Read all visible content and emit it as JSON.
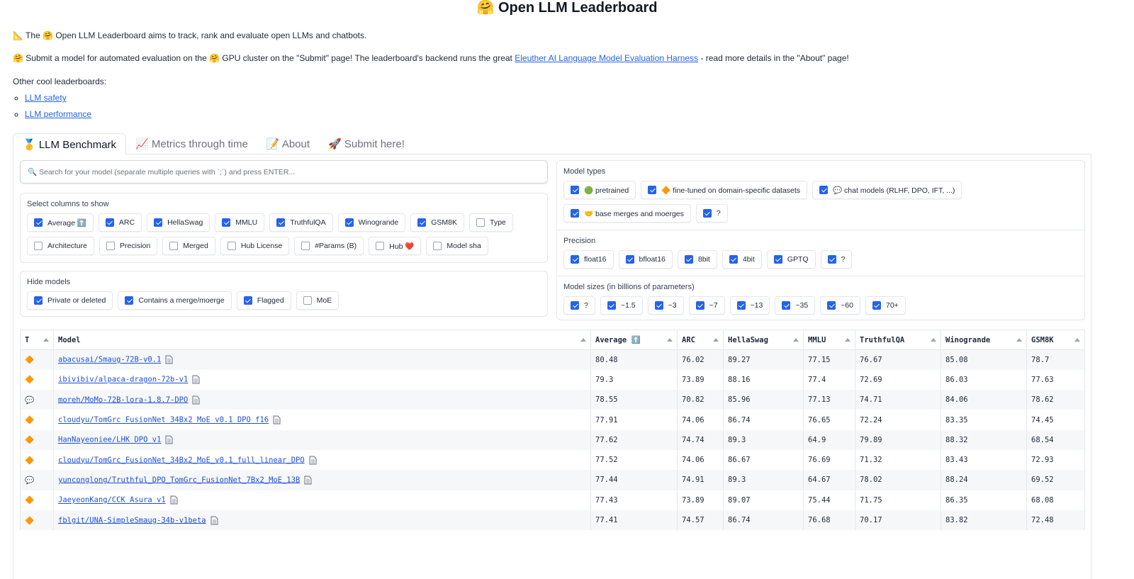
{
  "header": {
    "title": "🤗 Open LLM Leaderboard"
  },
  "intro": {
    "line1": "📐 The 🤗 Open LLM Leaderboard aims to track, rank and evaluate open LLMs and chatbots.",
    "line2": {
      "before": "🤗 Submit a model for automated evaluation on the 🤗 GPU cluster on the \"Submit\" page! The leaderboard's backend runs the great ",
      "link": "Eleuther AI Language Model Evaluation Harness",
      "after": " - read more details in the \"About\" page!"
    },
    "others_label": "Other cool leaderboards:",
    "others": [
      "LLM safety",
      "LLM performance"
    ]
  },
  "tabs": [
    {
      "label": "🥇 LLM Benchmark",
      "selected": true
    },
    {
      "label": "📈 Metrics through time",
      "selected": false
    },
    {
      "label": "📝 About",
      "selected": false
    },
    {
      "label": "🚀 Submit here!",
      "selected": false
    }
  ],
  "search": {
    "placeholder": "🔍 Search for your model (separate multiple queries with `;`) and press ENTER..."
  },
  "columns": {
    "label": "Select columns to show",
    "options": [
      {
        "label": "Average ⬆️",
        "checked": true
      },
      {
        "label": "ARC",
        "checked": true
      },
      {
        "label": "HellaSwag",
        "checked": true
      },
      {
        "label": "MMLU",
        "checked": true
      },
      {
        "label": "TruthfulQA",
        "checked": true
      },
      {
        "label": "Winogrande",
        "checked": true
      },
      {
        "label": "GSM8K",
        "checked": true
      },
      {
        "label": "Type",
        "checked": false
      },
      {
        "label": "Architecture",
        "checked": false
      },
      {
        "label": "Precision",
        "checked": false
      },
      {
        "label": "Merged",
        "checked": false
      },
      {
        "label": "Hub License",
        "checked": false
      },
      {
        "label": "#Params (B)",
        "checked": false
      },
      {
        "label": "Hub ❤️",
        "checked": false
      },
      {
        "label": "Model sha",
        "checked": false
      }
    ]
  },
  "hide_models": {
    "label": "Hide models",
    "options": [
      {
        "label": "Private or deleted",
        "checked": true
      },
      {
        "label": "Contains a merge/moerge",
        "checked": true
      },
      {
        "label": "Flagged",
        "checked": true
      },
      {
        "label": "MoE",
        "checked": false
      }
    ]
  },
  "model_types": {
    "label": "Model types",
    "options": [
      {
        "label": "🟢 pretrained",
        "checked": true
      },
      {
        "label": "🔶 fine-tuned on domain-specific datasets",
        "checked": true
      },
      {
        "label": "💬 chat models (RLHF, DPO, IFT, ...)",
        "checked": true
      },
      {
        "label": "🤝 base merges and moerges",
        "checked": true
      },
      {
        "label": "?",
        "checked": true
      }
    ]
  },
  "precision": {
    "label": "Precision",
    "options": [
      {
        "label": "float16",
        "checked": true
      },
      {
        "label": "bfloat16",
        "checked": true
      },
      {
        "label": "8bit",
        "checked": true
      },
      {
        "label": "4bit",
        "checked": true
      },
      {
        "label": "GPTQ",
        "checked": true
      },
      {
        "label": "?",
        "checked": true
      }
    ]
  },
  "model_sizes": {
    "label": "Model sizes (in billions of parameters)",
    "options": [
      {
        "label": "?",
        "checked": true
      },
      {
        "label": "~1.5",
        "checked": true
      },
      {
        "label": "~3",
        "checked": true
      },
      {
        "label": "~7",
        "checked": true
      },
      {
        "label": "~13",
        "checked": true
      },
      {
        "label": "~35",
        "checked": true
      },
      {
        "label": "~60",
        "checked": true
      },
      {
        "label": "70+",
        "checked": true
      }
    ]
  },
  "table": {
    "headers": [
      "T",
      "Model",
      "Average ⬆️",
      "ARC",
      "HellaSwag",
      "MMLU",
      "TruthfulQA",
      "Winogrande",
      "GSM8K"
    ],
    "rows": [
      [
        "🔶",
        "abacusai/Smaug-72B-v0.1",
        80.48,
        76.02,
        89.27,
        77.15,
        76.67,
        85.08,
        78.7
      ],
      [
        "🔶",
        "ibivibiv/alpaca-dragon-72b-v1",
        79.3,
        73.89,
        88.16,
        77.4,
        72.69,
        86.03,
        77.63
      ],
      [
        "💬",
        "moreh/MoMo-72B-lora-1.8.7-DPO",
        78.55,
        70.82,
        85.96,
        77.13,
        74.71,
        84.06,
        78.62
      ],
      [
        "🔶",
        "cloudyu/TomGrc_FusionNet_34Bx2_MoE_v0.1_DPO_f16",
        77.91,
        74.06,
        86.74,
        76.65,
        72.24,
        83.35,
        74.45
      ],
      [
        "🔶",
        "HanNayeoniee/LHK_DPO_v1",
        77.62,
        74.74,
        89.3,
        64.9,
        79.89,
        88.32,
        68.54
      ],
      [
        "🔶",
        "cloudyu/TomGrc_FusionNet_34Bx2_MoE_v0.1_full_linear_DPO",
        77.52,
        74.06,
        86.67,
        76.69,
        71.32,
        83.43,
        72.93
      ],
      [
        "💬",
        "yunconglong/Truthful_DPO_TomGrc_FusionNet_7Bx2_MoE_13B",
        77.44,
        74.91,
        89.3,
        64.67,
        78.02,
        88.24,
        69.52
      ],
      [
        "🔶",
        "JaeyeonKang/CCK_Asura_v1",
        77.43,
        73.89,
        89.07,
        75.44,
        71.75,
        86.35,
        68.08
      ],
      [
        "🔶",
        "fblgit/UNA-SimpleSmaug-34b-v1beta",
        77.41,
        74.57,
        86.74,
        76.68,
        70.17,
        83.82,
        72.48
      ]
    ]
  }
}
